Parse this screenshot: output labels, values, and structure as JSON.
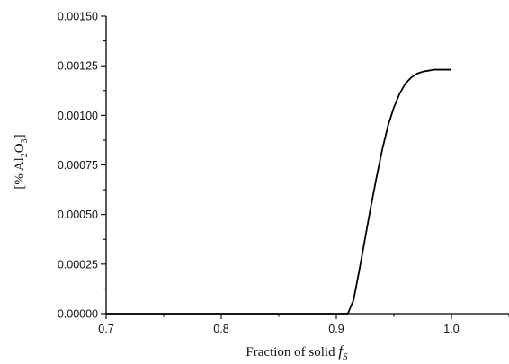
{
  "chart_data": {
    "type": "line",
    "title": "",
    "xlabel": "Fraction of solid",
    "xlabel_symbol": "f",
    "xlabel_symbol_sub": "S",
    "ylabel_prefix": "[% Al",
    "ylabel_sub1": "2",
    "ylabel_mid": "O",
    "ylabel_sub2": "3",
    "ylabel_suffix": "]",
    "xlim": [
      0.7,
      1.05
    ],
    "ylim": [
      0.0,
      0.0015
    ],
    "x_ticks": [
      0.7,
      0.8,
      0.9,
      1.0
    ],
    "x_tick_labels": [
      "0.7",
      "0.8",
      "0.9",
      "1.0"
    ],
    "y_ticks": [
      0.0,
      0.00025,
      0.0005,
      0.00075,
      0.001,
      0.00125,
      0.0015
    ],
    "y_tick_labels": [
      "0.00000",
      "0.00025",
      "0.00050",
      "0.00075",
      "0.00100",
      "0.00125",
      "0.00150"
    ],
    "grid": false,
    "series": [
      {
        "color": "#000000",
        "x": [
          0.7,
          0.8,
          0.9,
          0.91,
          0.915,
          0.92,
          0.925,
          0.93,
          0.935,
          0.94,
          0.945,
          0.95,
          0.955,
          0.96,
          0.965,
          0.97,
          0.975,
          0.98,
          0.985,
          0.99,
          0.995,
          1.0
        ],
        "y": [
          0.0,
          0.0,
          0.0,
          0.0,
          7e-05,
          0.00022,
          0.00038,
          0.00054,
          0.00069,
          0.00083,
          0.00095,
          0.00104,
          0.00111,
          0.00116,
          0.00119,
          0.00121,
          0.00122,
          0.001225,
          0.00123,
          0.00123,
          0.00123,
          0.00123
        ]
      }
    ]
  }
}
